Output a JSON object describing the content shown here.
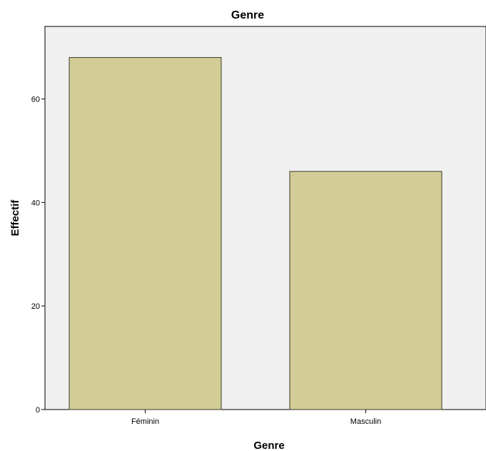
{
  "chart_data": {
    "type": "bar",
    "title": "Genre",
    "xlabel": "Genre",
    "ylabel": "Effectif",
    "categories": [
      "Féminin",
      "Masculin"
    ],
    "values": [
      68,
      46
    ],
    "ylim": [
      0,
      74
    ],
    "yticks": [
      0,
      20,
      40,
      60
    ],
    "grid": false,
    "bar_color": "#d2cc96",
    "plot_background": "#f0f0f0"
  }
}
